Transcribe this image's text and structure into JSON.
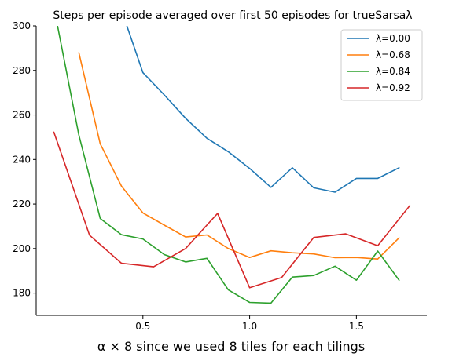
{
  "chart_data": {
    "type": "line",
    "title": "Steps per episode averaged over first 50 episodes for trueSarsaλ",
    "xlabel": "α × 8 since we used 8 tiles for each tilings",
    "ylabel": "",
    "xlim": [
      0.0,
      1.83
    ],
    "ylim": [
      170,
      300
    ],
    "xticks": [
      {
        "value": 0.5,
        "label": "0.5"
      },
      {
        "value": 1.0,
        "label": "1.0"
      },
      {
        "value": 1.5,
        "label": "1.5"
      }
    ],
    "yticks": [
      {
        "value": 180,
        "label": "180"
      },
      {
        "value": 200,
        "label": "200"
      },
      {
        "value": 220,
        "label": "220"
      },
      {
        "value": 240,
        "label": "240"
      },
      {
        "value": 260,
        "label": "260"
      },
      {
        "value": 280,
        "label": "280"
      },
      {
        "value": 300,
        "label": "300"
      }
    ],
    "grid": false,
    "legend_position": "top-right",
    "series": [
      {
        "name": "λ=0.00",
        "color": "#1f77b4",
        "x": [
          0.4,
          0.5,
          0.6,
          0.7,
          0.8,
          0.9,
          1.0,
          1.1,
          1.2,
          1.3,
          1.4,
          1.5,
          1.6,
          1.7
        ],
        "y": [
          307,
          279,
          269,
          258.5,
          249.5,
          243.5,
          236,
          227.5,
          236.3,
          227.3,
          225.3,
          231.5,
          231.5,
          236.3
        ]
      },
      {
        "name": "λ=0.68",
        "color": "#ff7f0e",
        "x": [
          0.2,
          0.3,
          0.4,
          0.5,
          0.6,
          0.7,
          0.8,
          0.9,
          1.0,
          1.1,
          1.2,
          1.3,
          1.4,
          1.5,
          1.6,
          1.7
        ],
        "y": [
          288,
          247,
          228,
          216,
          210.5,
          205.2,
          206.1,
          200,
          196,
          199,
          198.1,
          197.6,
          195.9,
          196,
          195.3,
          204.8
        ]
      },
      {
        "name": "λ=0.84",
        "color": "#2ca02c",
        "x": [
          0.1,
          0.2,
          0.3,
          0.4,
          0.5,
          0.6,
          0.7,
          0.8,
          0.9,
          1.0,
          1.1,
          1.2,
          1.3,
          1.4,
          1.5,
          1.6,
          1.7
        ],
        "y": [
          300,
          251,
          213.5,
          206.2,
          204.3,
          197.3,
          194,
          195.6,
          181.5,
          175.8,
          175.5,
          187.2,
          187.9,
          192.1,
          185.8,
          198.9,
          185.8
        ]
      },
      {
        "name": "λ=0.92",
        "color": "#d62728",
        "x": [
          0.083,
          0.25,
          0.4,
          0.55,
          0.7,
          0.85,
          1.0,
          1.15,
          1.3,
          1.45,
          1.6,
          1.75
        ],
        "y": [
          252.3,
          206,
          193.4,
          191.8,
          200,
          215.8,
          182.4,
          187,
          205,
          206.6,
          201.3,
          219.3
        ]
      }
    ]
  }
}
